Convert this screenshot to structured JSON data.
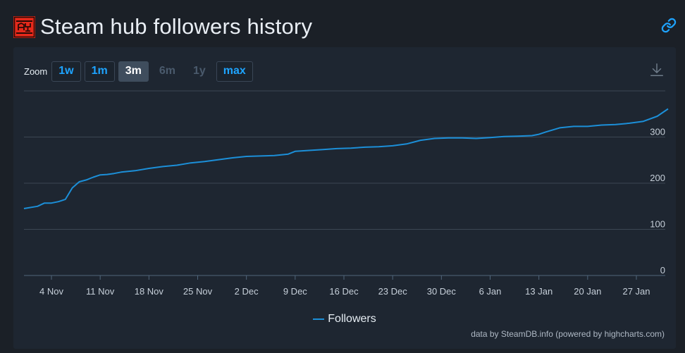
{
  "header": {
    "title": "Steam hub followers history",
    "icon": "game-logo-icon",
    "link_icon": "chain-link-icon"
  },
  "zoom": {
    "label": "Zoom",
    "buttons": [
      {
        "label": "1w",
        "state": "normal"
      },
      {
        "label": "1m",
        "state": "normal"
      },
      {
        "label": "3m",
        "state": "active"
      },
      {
        "label": "6m",
        "state": "disabled"
      },
      {
        "label": "1y",
        "state": "disabled"
      },
      {
        "label": "max",
        "state": "normal"
      }
    ]
  },
  "download_icon": "download-icon",
  "colors": {
    "background": "#1b2027",
    "panel": "#1e2631",
    "series": "#1c8fd8",
    "accent": "#1ea4ff"
  },
  "chart_data": {
    "type": "line",
    "title": "",
    "xlabel": "",
    "ylabel": "",
    "ylim": [
      0,
      400
    ],
    "yticks": [
      0,
      100,
      200,
      300
    ],
    "ytick_labels": [
      "0",
      "100",
      "200",
      "300"
    ],
    "xtick_labels": [
      "4 Nov",
      "11 Nov",
      "18 Nov",
      "25 Nov",
      "2 Dec",
      "9 Dec",
      "16 Dec",
      "23 Dec",
      "30 Dec",
      "6 Jan",
      "13 Jan",
      "20 Jan",
      "27 Jan"
    ],
    "grid": true,
    "legend": "bottom-center",
    "series": [
      {
        "name": "Followers",
        "x": [
          "Oct 31",
          "Nov 2",
          "Nov 3",
          "Nov 4",
          "Nov 5",
          "Nov 6",
          "Nov 7",
          "Nov 8",
          "Nov 9",
          "Nov 10",
          "Nov 11",
          "Nov 12",
          "Nov 13",
          "Nov 14",
          "Nov 16",
          "Nov 18",
          "Nov 20",
          "Nov 22",
          "Nov 24",
          "Nov 26",
          "Nov 28",
          "Nov 30",
          "Dec 2",
          "Dec 4",
          "Dec 6",
          "Dec 8",
          "Dec 9",
          "Dec 11",
          "Dec 13",
          "Dec 15",
          "Dec 17",
          "Dec 19",
          "Dec 21",
          "Dec 23",
          "Dec 25",
          "Dec 27",
          "Dec 29",
          "Dec 31",
          "Jan 2",
          "Jan 4",
          "Jan 6",
          "Jan 8",
          "Jan 10",
          "Jan 12",
          "Jan 13",
          "Jan 14",
          "Jan 16",
          "Jan 18",
          "Jan 20",
          "Jan 22",
          "Jan 24",
          "Jan 26",
          "Jan 28",
          "Jan 30",
          "Feb 1"
        ],
        "values": [
          145,
          150,
          157,
          157,
          160,
          165,
          190,
          203,
          207,
          213,
          218,
          219,
          221,
          224,
          227,
          232,
          236,
          239,
          244,
          247,
          251,
          255,
          258,
          259,
          260,
          263,
          269,
          271,
          273,
          275,
          276,
          278,
          279,
          281,
          285,
          293,
          297,
          298,
          298,
          297,
          299,
          301,
          302,
          303,
          306,
          311,
          320,
          323,
          323,
          326,
          327,
          330,
          334,
          345,
          361
        ]
      }
    ]
  },
  "credits": "data by SteamDB.info (powered by highcharts.com)"
}
